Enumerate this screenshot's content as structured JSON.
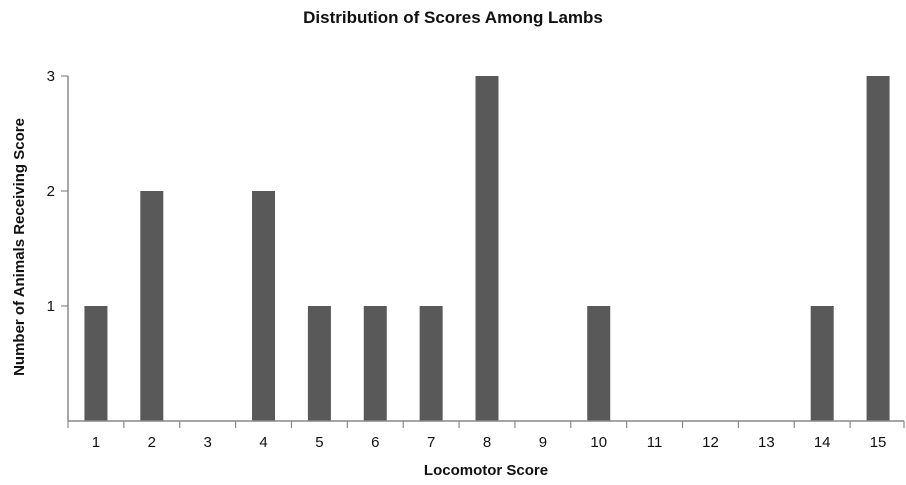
{
  "chart_data": {
    "type": "bar",
    "title": "Distribution of Scores Among Lambs",
    "xlabel": "Locomotor Score",
    "ylabel": "Number of Animals Receiving Score",
    "categories": [
      "1",
      "2",
      "3",
      "4",
      "5",
      "6",
      "7",
      "8",
      "9",
      "10",
      "11",
      "12",
      "13",
      "14",
      "15"
    ],
    "values": [
      1,
      2,
      0,
      2,
      1,
      1,
      1,
      3,
      0,
      1,
      0,
      0,
      0,
      1,
      3
    ],
    "ylim": [
      0,
      3
    ],
    "yticks": [
      1,
      2,
      3
    ],
    "grid": false,
    "bar_color": "#595959"
  }
}
